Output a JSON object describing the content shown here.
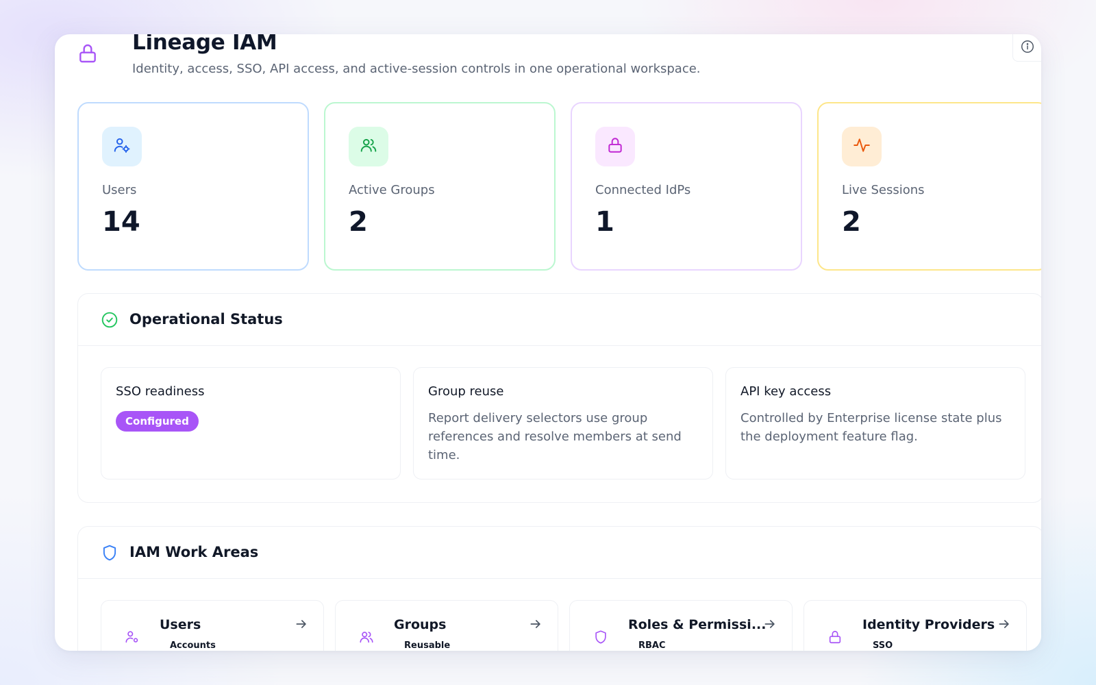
{
  "header": {
    "title": "Lineage IAM",
    "subtitle": "Identity, access, SSO, API access, and active-session controls in one operational workspace.",
    "lock_icon": "lock-icon",
    "info_icon": "info-icon"
  },
  "stats": [
    {
      "label": "Users",
      "value": "14",
      "icon": "user-cog-icon",
      "accent": "#2563eb",
      "bg": "#e0f2fe",
      "border": "#bfdbfe"
    },
    {
      "label": "Active Groups",
      "value": "2",
      "icon": "users-icon",
      "accent": "#16a34a",
      "bg": "#dcfce7",
      "border": "#bbf7d0"
    },
    {
      "label": "Connected IdPs",
      "value": "1",
      "icon": "lock-icon",
      "accent": "#c026d3",
      "bg": "#fae8ff",
      "border": "#e9d5ff"
    },
    {
      "label": "Live Sessions",
      "value": "2",
      "icon": "activity-icon",
      "accent": "#ea580c",
      "bg": "#ffedd5",
      "border": "#fde68a"
    }
  ],
  "operational_status": {
    "title": "Operational Status",
    "icon": "check-circle-icon",
    "cards": [
      {
        "title": "SSO readiness",
        "badge": "Configured"
      },
      {
        "title": "Group reuse",
        "description": "Report delivery selectors use group references and resolve members at send time."
      },
      {
        "title": "API key access",
        "description": "Controlled by Enterprise license state plus the deployment feature flag."
      }
    ]
  },
  "work_areas": {
    "title": "IAM Work Areas",
    "icon": "shield-icon",
    "cards": [
      {
        "title": "Users",
        "tag": "Accounts",
        "icon": "user-cog-icon"
      },
      {
        "title": "Groups",
        "tag": "Reusable",
        "icon": "users-icon"
      },
      {
        "title": "Roles & Permissi...",
        "tag": "RBAC",
        "icon": "shield-icon"
      },
      {
        "title": "Identity Providers",
        "tag": "SSO",
        "icon": "lock-icon"
      }
    ]
  },
  "colors": {
    "brand_purple": "#a855f7",
    "status_green": "#22c55e",
    "shield_blue": "#3b82f6"
  }
}
